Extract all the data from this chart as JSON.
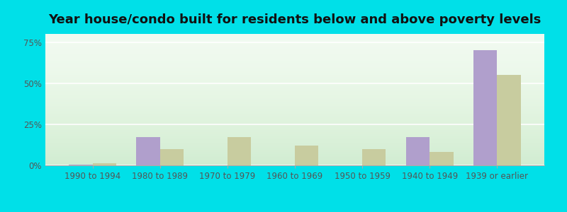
{
  "title": "Year house/condo built for residents below and above poverty levels",
  "categories": [
    "1990 to 1994",
    "1980 to 1989",
    "1970 to 1979",
    "1960 to 1969",
    "1950 to 1959",
    "1940 to 1949",
    "1939 or earlier"
  ],
  "below_poverty": [
    0.5,
    17.0,
    0.0,
    0.0,
    0.0,
    17.0,
    70.0
  ],
  "above_poverty": [
    1.5,
    10.0,
    17.0,
    12.0,
    10.0,
    8.0,
    55.0
  ],
  "below_color": "#b09fcc",
  "above_color": "#c8cc9f",
  "plot_bg_color": "#eaf5e8",
  "outer_bg": "#00e0e8",
  "ylim": [
    0,
    80
  ],
  "yticks": [
    0,
    25,
    50,
    75
  ],
  "ytick_labels": [
    "0%",
    "25%",
    "50%",
    "75%"
  ],
  "title_fontsize": 13,
  "tick_fontsize": 8.5,
  "legend_fontsize": 9.5
}
